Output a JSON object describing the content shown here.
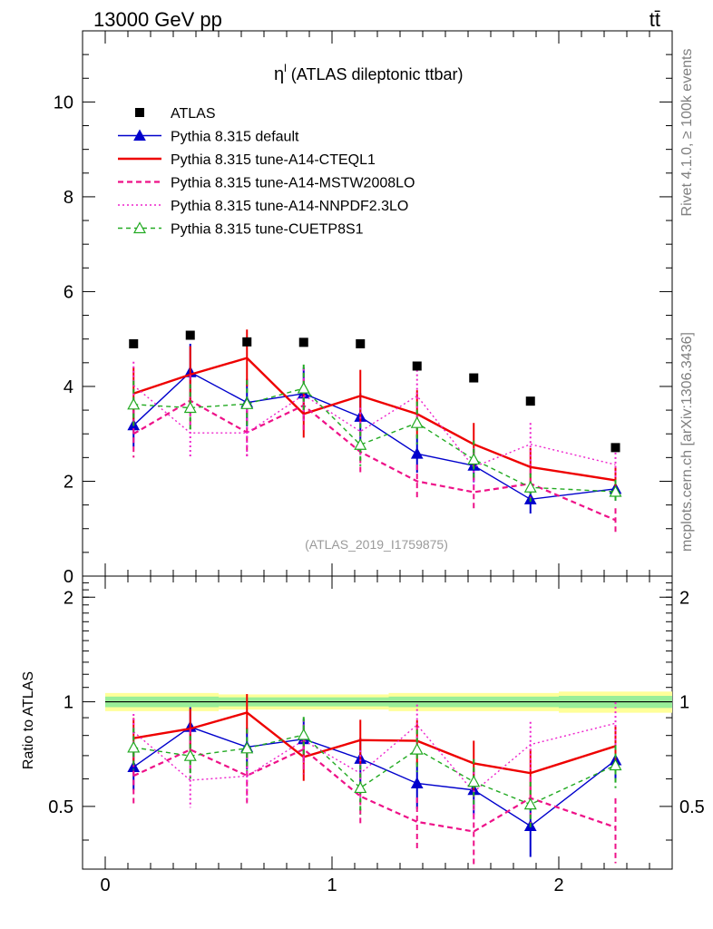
{
  "header": {
    "energy_label": "13000 GeV pp",
    "process_label": "tt̄"
  },
  "side_labels": {
    "rivet": "Rivet 4.1.0, ≥ 100k events",
    "mcplots": "mcplots.cern.ch [arXiv:1306.3436]"
  },
  "chart_data": {
    "type": "line",
    "title_main": "η",
    "title_sup": "l",
    "title_rest": " (ATLAS dileptonic ttbar)",
    "analysis_id": "(ATLAS_2019_I1759875)",
    "xlabel": "",
    "ylabel_ratio": "Ratio to ATLAS",
    "xlim": [
      -0.1,
      2.5
    ],
    "ylim_main": [
      0,
      11.5
    ],
    "ylim_ratio": [
      0.33,
      2.3
    ],
    "x_ticks": [
      "0",
      "1",
      "2"
    ],
    "y_ticks_main": [
      "0",
      "2",
      "4",
      "6",
      "8",
      "10"
    ],
    "y_ticks_ratio": [
      "0.5",
      "1",
      "2"
    ],
    "bin_edges": [
      0,
      0.25,
      0.5,
      0.75,
      1.0,
      1.25,
      1.5,
      1.75,
      2.0,
      2.5
    ],
    "x": [
      0.125,
      0.375,
      0.625,
      0.875,
      1.125,
      1.375,
      1.625,
      1.875,
      2.25
    ],
    "data": {
      "name": "ATLAS",
      "values": [
        4.9,
        5.08,
        4.94,
        4.93,
        4.9,
        4.43,
        4.18,
        3.69,
        2.71
      ]
    },
    "band": {
      "outer": [
        0.06,
        0.06,
        0.05,
        0.05,
        0.05,
        0.06,
        0.06,
        0.06,
        0.07
      ],
      "inner": [
        0.035,
        0.035,
        0.03,
        0.03,
        0.03,
        0.035,
        0.035,
        0.035,
        0.04
      ]
    },
    "series": [
      {
        "name": "Pythia 8.315 default",
        "color": "#0000cc",
        "dash": "",
        "marker": "triangle",
        "values": [
          3.18,
          4.3,
          3.66,
          3.85,
          3.36,
          2.58,
          2.33,
          1.62,
          1.84
        ],
        "err": [
          0.45,
          0.6,
          0.5,
          0.55,
          0.5,
          0.4,
          0.35,
          0.3,
          0.25
        ]
      },
      {
        "name": "Pythia 8.315 tune-A14-CTEQL1",
        "color": "#ee0000",
        "dash": "",
        "marker": "none",
        "values": [
          3.85,
          4.25,
          4.6,
          3.42,
          3.8,
          3.42,
          2.78,
          2.3,
          2.02
        ],
        "err": [
          0.55,
          0.6,
          0.6,
          0.5,
          0.55,
          0.5,
          0.45,
          0.4,
          0.3
        ]
      },
      {
        "name": "Pythia 8.315 tune-A14-MSTW2008LO",
        "color": "#ee1188",
        "dash": "6,4",
        "marker": "none",
        "values": [
          3.0,
          3.7,
          3.03,
          3.6,
          2.62,
          2.0,
          1.77,
          1.95,
          1.18
        ],
        "err": [
          0.5,
          0.55,
          0.5,
          0.55,
          0.45,
          0.35,
          0.35,
          0.3,
          0.25
        ]
      },
      {
        "name": "Pythia 8.315 tune-A14-NNPDF2.3LO",
        "color": "#ee22cc",
        "dash": "2,3",
        "marker": "none",
        "values": [
          4.02,
          3.02,
          3.02,
          3.82,
          3.05,
          3.8,
          2.3,
          2.78,
          2.35
        ],
        "err": [
          0.5,
          0.5,
          0.5,
          0.55,
          0.5,
          0.55,
          0.4,
          0.45,
          0.35
        ]
      },
      {
        "name": "Pythia 8.315 tune-CUETP8S1",
        "color": "#22aa22",
        "dash": "5,4",
        "marker": "open-triangle",
        "values": [
          3.62,
          3.55,
          3.63,
          3.96,
          2.77,
          3.23,
          2.46,
          1.87,
          1.78
        ],
        "err": [
          0.5,
          0.5,
          0.5,
          0.5,
          0.45,
          0.45,
          0.4,
          0.3,
          0.25
        ]
      }
    ]
  }
}
